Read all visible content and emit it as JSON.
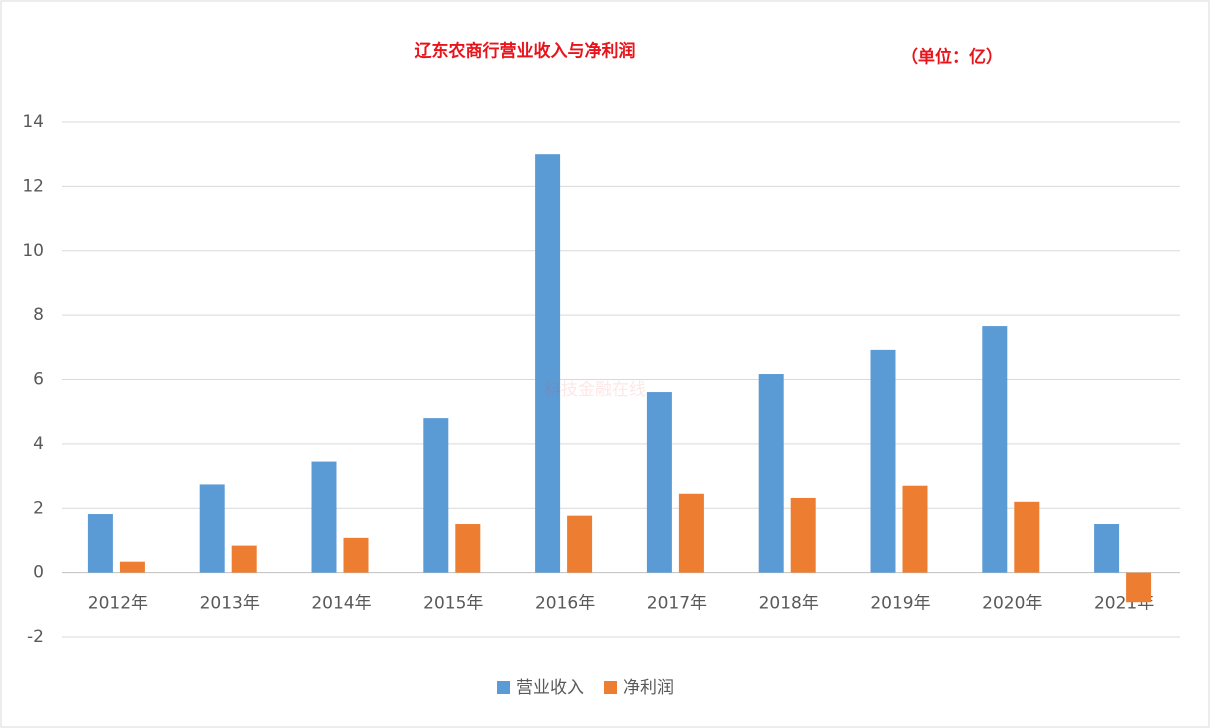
{
  "chart_data": {
    "type": "bar",
    "title": "辽东农商行营业收入与净利润",
    "subtitle": "（单位：亿）",
    "watermark": "科技金融在线",
    "categories": [
      "2012年",
      "2013年",
      "2014年",
      "2015年",
      "2016年",
      "2017年",
      "2018年",
      "2019年",
      "2020年",
      "2021年"
    ],
    "series": [
      {
        "name": "营业收入",
        "color": "#5b9bd5",
        "values": [
          1.82,
          2.74,
          3.45,
          4.8,
          13.0,
          5.61,
          6.17,
          6.92,
          7.66,
          1.51
        ]
      },
      {
        "name": "净利润",
        "color": "#ed7d31",
        "values": [
          0.34,
          0.84,
          1.08,
          1.51,
          1.77,
          2.45,
          2.32,
          2.7,
          2.2,
          -0.92
        ]
      }
    ],
    "ylim": [
      -2,
      14
    ],
    "yticks": [
      -2,
      0,
      2,
      4,
      6,
      8,
      10,
      12,
      14
    ],
    "grid": true,
    "legend": "bottom"
  }
}
